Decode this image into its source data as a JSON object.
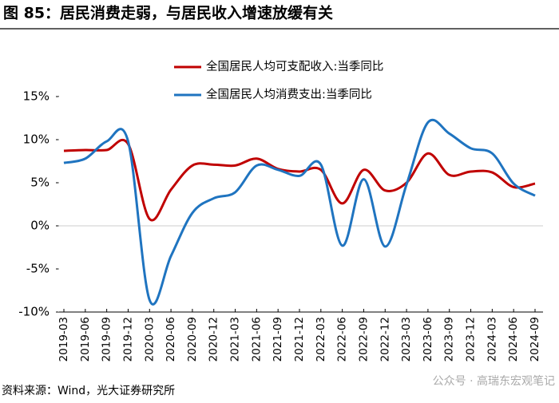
{
  "chart_data": {
    "type": "line",
    "title": "图 85：居民消费走弱，与居民收入增速放缓有关",
    "source": "资料来源：Wind，光大证券研究所",
    "watermark": "公众号 · 高瑞东宏观笔记",
    "categories": [
      "2019-03",
      "2019-06",
      "2019-09",
      "2019-12",
      "2020-03",
      "2020-06",
      "2020-09",
      "2020-12",
      "2021-03",
      "2021-06",
      "2021-09",
      "2021-12",
      "2022-03",
      "2022-06",
      "2022-09",
      "2022-12",
      "2023-03",
      "2023-06",
      "2023-09",
      "2023-12",
      "2024-03",
      "2024-06",
      "2024-09"
    ],
    "series": [
      {
        "name": "全国居民人均可支配收入:当季同比",
        "color": "#c00000",
        "values": [
          8.7,
          8.8,
          8.8,
          9.5,
          0.8,
          4.2,
          7.0,
          7.1,
          7.0,
          7.8,
          6.6,
          6.3,
          6.5,
          2.6,
          6.5,
          4.1,
          5.0,
          8.4,
          5.9,
          6.3,
          6.2,
          4.5,
          4.9
        ]
      },
      {
        "name": "全国居民人均消费支出:当季同比",
        "color": "#1f74c0",
        "values": [
          7.3,
          7.8,
          9.8,
          9.8,
          -8.6,
          -3.5,
          1.5,
          3.2,
          3.9,
          7.0,
          6.5,
          5.8,
          7.1,
          -2.3,
          5.4,
          -2.4,
          4.8,
          12.0,
          10.7,
          9.0,
          8.4,
          4.9,
          3.5
        ]
      }
    ],
    "ylim": [
      -10,
      15
    ],
    "yticks": [
      {
        "value": -10,
        "label": "-10%"
      },
      {
        "value": -5,
        "label": "-5%"
      },
      {
        "value": 0,
        "label": "0%"
      },
      {
        "value": 5,
        "label": "5%"
      },
      {
        "value": 10,
        "label": "10%"
      },
      {
        "value": 15,
        "label": "15%"
      }
    ],
    "grid": false
  }
}
